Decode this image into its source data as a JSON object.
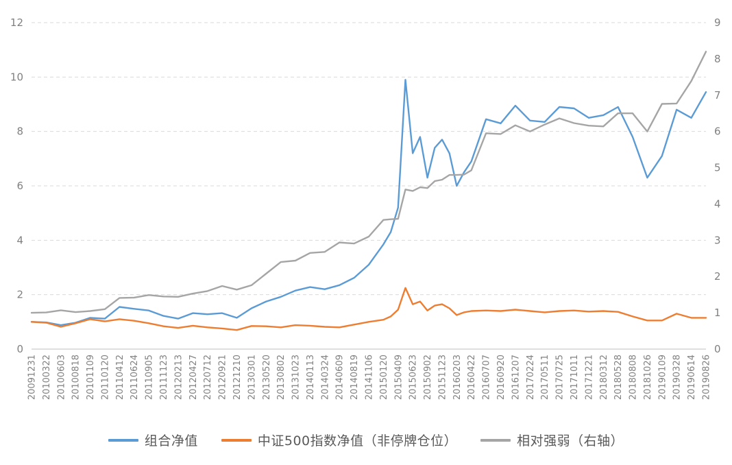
{
  "page": {
    "background": "#FFFFFF"
  },
  "legend": {
    "position": "bottom-center"
  },
  "chart_data": {
    "type": "line",
    "title": "",
    "xlabel": "",
    "ylabel_left": "",
    "ylabel_right": "",
    "grid": "dashed-horizontal",
    "legend_position": "bottom",
    "left_axis": {
      "min": 0,
      "max": 12,
      "ticks": [
        0,
        2,
        4,
        6,
        8,
        10,
        12
      ],
      "tick_color": "#808080"
    },
    "right_axis": {
      "min": 0,
      "max": 9,
      "ticks": [
        0,
        1,
        2,
        3,
        4,
        5,
        6,
        7,
        8,
        9
      ],
      "tick_color": "#808080"
    },
    "x_labels": [
      "20091231",
      "20100322",
      "20100603",
      "20100818",
      "20101109",
      "20110120",
      "20110412",
      "20110624",
      "20110905",
      "20111123",
      "20120213",
      "20120427",
      "20120712",
      "20120921",
      "20121210",
      "20130301",
      "20130520",
      "20130802",
      "20131023",
      "20140113",
      "20140324",
      "20140609",
      "20140819",
      "20141106",
      "20150120",
      "20150409",
      "20150623",
      "20150902",
      "20151123",
      "20160203",
      "20160422",
      "20160707",
      "20160920",
      "20161207",
      "20170224",
      "20170511",
      "20170725",
      "20171011",
      "20171221",
      "20180312",
      "20180528",
      "20180808",
      "20181026",
      "20190109",
      "20190328",
      "20190614",
      "20190826"
    ],
    "series": [
      {
        "name": "组合净值",
        "axis": "left",
        "color": "#5B9BD5",
        "x": [
          0,
          1,
          2,
          3,
          4,
          5,
          6,
          7,
          8,
          9,
          10,
          11,
          12,
          13,
          14,
          15,
          16,
          17,
          18,
          19,
          20,
          21,
          22,
          23,
          24,
          24.5,
          25,
          25.5,
          26,
          26.5,
          27,
          27.5,
          28,
          28.5,
          29,
          29.5,
          30,
          31,
          32,
          33,
          34,
          35,
          36,
          37,
          38,
          39,
          40,
          41,
          42,
          43,
          44,
          45,
          46
        ],
        "values": [
          1.0,
          0.98,
          0.88,
          0.97,
          1.15,
          1.12,
          1.55,
          1.48,
          1.42,
          1.22,
          1.12,
          1.32,
          1.28,
          1.32,
          1.15,
          1.5,
          1.75,
          1.92,
          2.15,
          2.28,
          2.2,
          2.35,
          2.62,
          3.1,
          3.85,
          4.3,
          5.2,
          9.9,
          7.2,
          7.8,
          6.3,
          7.4,
          7.7,
          7.2,
          6.0,
          6.5,
          6.9,
          8.45,
          8.3,
          8.95,
          8.4,
          8.35,
          8.9,
          8.85,
          8.5,
          8.6,
          8.9,
          7.8,
          6.3,
          7.1,
          8.8,
          8.5,
          9.45
        ]
      },
      {
        "name": "中证500指数净值（非停牌仓位）",
        "axis": "left",
        "color": "#ED7D31",
        "x": [
          0,
          1,
          2,
          3,
          4,
          5,
          6,
          7,
          8,
          9,
          10,
          11,
          12,
          13,
          14,
          15,
          16,
          17,
          18,
          19,
          20,
          21,
          22,
          23,
          24,
          24.5,
          25,
          25.5,
          26,
          26.5,
          27,
          27.5,
          28,
          28.5,
          29,
          29.5,
          30,
          31,
          32,
          33,
          34,
          35,
          36,
          37,
          38,
          39,
          40,
          41,
          42,
          43,
          44,
          45,
          46
        ],
        "values": [
          1.0,
          0.97,
          0.82,
          0.95,
          1.1,
          1.02,
          1.1,
          1.04,
          0.95,
          0.84,
          0.78,
          0.86,
          0.8,
          0.76,
          0.7,
          0.85,
          0.84,
          0.8,
          0.88,
          0.86,
          0.82,
          0.8,
          0.9,
          1.0,
          1.08,
          1.2,
          1.45,
          2.25,
          1.65,
          1.75,
          1.42,
          1.6,
          1.65,
          1.5,
          1.25,
          1.35,
          1.4,
          1.42,
          1.4,
          1.45,
          1.4,
          1.35,
          1.4,
          1.42,
          1.38,
          1.4,
          1.37,
          1.2,
          1.05,
          1.05,
          1.3,
          1.15,
          1.15
        ]
      },
      {
        "name": "相对强弱（右轴）",
        "axis": "right",
        "color": "#A5A5A5",
        "x": [
          0,
          1,
          2,
          3,
          4,
          5,
          6,
          7,
          8,
          9,
          10,
          11,
          12,
          13,
          14,
          15,
          16,
          17,
          18,
          19,
          20,
          21,
          22,
          23,
          24,
          24.5,
          25,
          25.5,
          26,
          26.5,
          27,
          27.5,
          28,
          28.5,
          29,
          29.5,
          30,
          31,
          32,
          33,
          34,
          35,
          36,
          37,
          38,
          39,
          40,
          41,
          42,
          43,
          44,
          45,
          46
        ],
        "values": [
          1.0,
          1.01,
          1.07,
          1.02,
          1.05,
          1.1,
          1.41,
          1.42,
          1.49,
          1.45,
          1.44,
          1.53,
          1.6,
          1.74,
          1.64,
          1.76,
          2.08,
          2.4,
          2.44,
          2.65,
          2.68,
          2.94,
          2.91,
          3.1,
          3.56,
          3.58,
          3.59,
          4.4,
          4.36,
          4.46,
          4.44,
          4.63,
          4.67,
          4.8,
          4.8,
          4.81,
          4.93,
          5.95,
          5.93,
          6.17,
          6.0,
          6.19,
          6.36,
          6.23,
          6.16,
          6.14,
          6.5,
          6.5,
          6.0,
          6.76,
          6.77,
          7.39,
          8.2
        ]
      }
    ]
  }
}
